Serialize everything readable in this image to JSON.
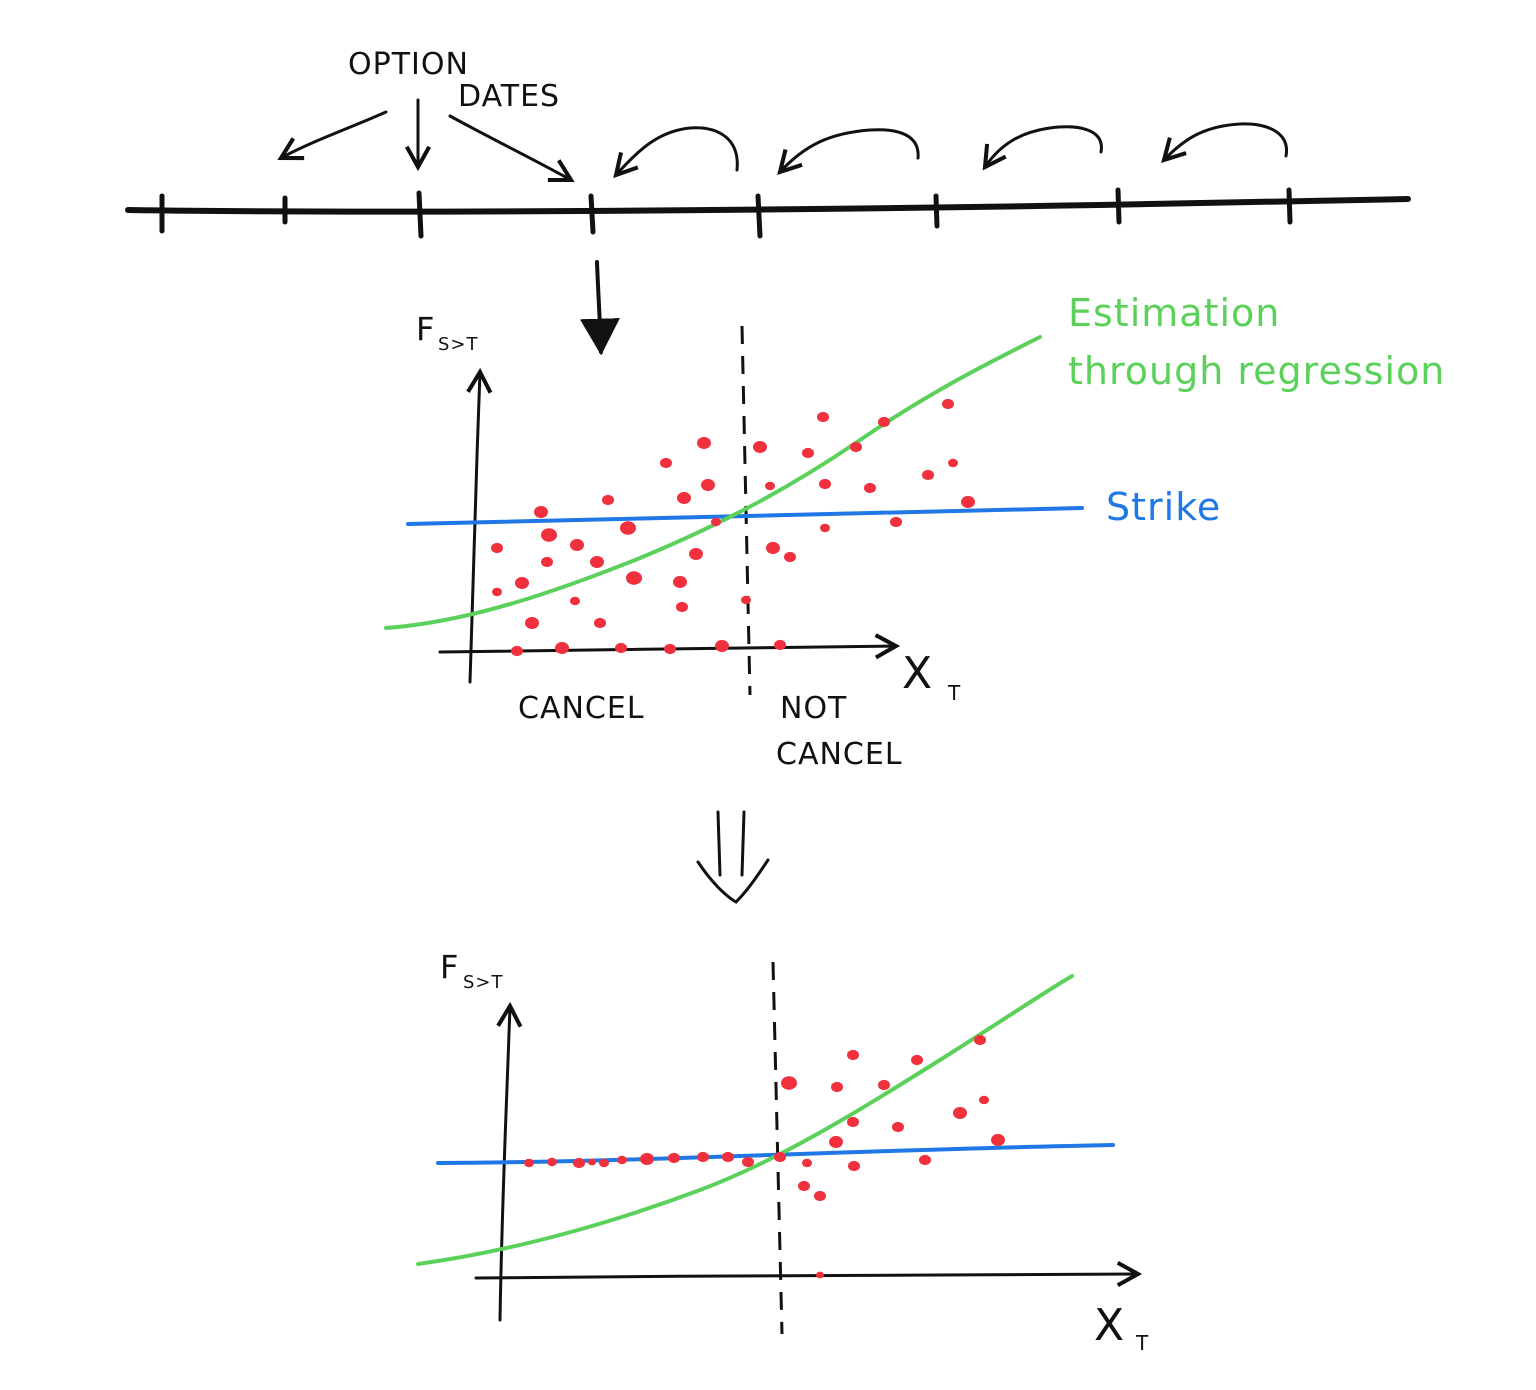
{
  "timeline": {
    "label_line1": "OPTION",
    "label_line2": "DATES"
  },
  "top_plot": {
    "y_axis_label": "F",
    "y_axis_subscript": "S>T",
    "x_axis_label": "X",
    "x_axis_subscript": "T",
    "region_left": "CANCEL",
    "region_right_line1": "NOT",
    "region_right_line2": "CANCEL",
    "regression_label_line1": "Estimation",
    "regression_label_line2": "through regression",
    "strike_label": "Strike"
  },
  "bottom_plot": {
    "y_axis_label": "F",
    "y_axis_subscript": "S>T",
    "x_axis_label": "X",
    "x_axis_subscript": "T"
  },
  "colors": {
    "ink": "#111111",
    "points": "#f0303c",
    "regression": "#5bd15b",
    "strike": "#1f78e6"
  }
}
